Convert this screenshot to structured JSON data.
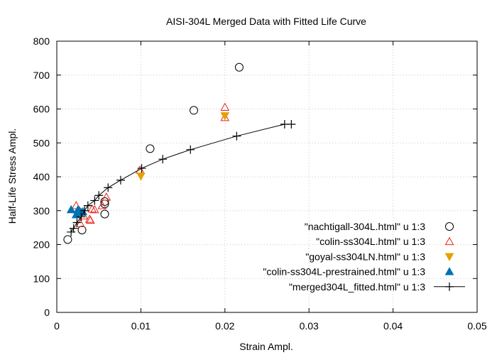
{
  "chart_data": {
    "type": "scatter",
    "title": "AISI-304L Merged Data with Fitted Life Curve",
    "xlabel": "Strain Ampl.",
    "ylabel": "Half-Life Stress Ampl.",
    "xlim": [
      0,
      0.05
    ],
    "ylim": [
      0,
      800
    ],
    "xticks": [
      0,
      0.01,
      0.02,
      0.03,
      0.04,
      0.05
    ],
    "xtick_labels": [
      "0",
      "0.01",
      "0.02",
      "0.03",
      "0.04",
      "0.05"
    ],
    "yticks": [
      0,
      100,
      200,
      300,
      400,
      500,
      600,
      700,
      800
    ],
    "ytick_labels": [
      "0",
      "100",
      "200",
      "300",
      "400",
      "500",
      "600",
      "700",
      "800"
    ],
    "grid": true,
    "legend_position": "bottom-right",
    "series": [
      {
        "name": "\"nachtigall-304L.html\" u 1:3",
        "marker": "circle-open",
        "color": "#000000",
        "points": [
          [
            0.0013,
            215
          ],
          [
            0.003,
            243
          ],
          [
            0.0057,
            290
          ],
          [
            0.0057,
            320
          ],
          [
            0.0057,
            327
          ],
          [
            0.0111,
            483
          ],
          [
            0.0163,
            596
          ],
          [
            0.0217,
            723
          ]
        ]
      },
      {
        "name": "\"colin-ss304L.html\"   u 1:3",
        "marker": "triangle-up-open",
        "color": "#e8251b",
        "points": [
          [
            0.0023,
            315
          ],
          [
            0.0028,
            262
          ],
          [
            0.0032,
            285
          ],
          [
            0.0039,
            275
          ],
          [
            0.004,
            272
          ],
          [
            0.0042,
            305
          ],
          [
            0.0045,
            303
          ],
          [
            0.0054,
            315
          ],
          [
            0.0059,
            340
          ],
          [
            0.0099,
            420
          ],
          [
            0.02,
            575
          ],
          [
            0.02,
            605
          ]
        ]
      },
      {
        "name": "\"goyal-ss304LN.html\"  u 1:3",
        "marker": "triangle-down-filled",
        "color": "#e5a000",
        "points": [
          [
            0.01,
            402
          ],
          [
            0.02,
            580
          ]
        ]
      },
      {
        "name": "\"colin-ss304L-prestrained.html\" u 1:3",
        "marker": "triangle-up-filled",
        "color": "#0072b2",
        "points": [
          [
            0.0017,
            303
          ],
          [
            0.0023,
            288
          ],
          [
            0.0025,
            302
          ],
          [
            0.0027,
            300
          ],
          [
            0.0029,
            295
          ],
          [
            0.0031,
            297
          ]
        ]
      },
      {
        "name": "\"merged304L_fitted.html\"        u 1:3",
        "marker": "plus",
        "color": "#000000",
        "line": true,
        "points": [
          [
            0.0017,
            237
          ],
          [
            0.002,
            248
          ],
          [
            0.0024,
            265
          ],
          [
            0.0029,
            282
          ],
          [
            0.0033,
            300
          ],
          [
            0.0037,
            315
          ],
          [
            0.0045,
            330
          ],
          [
            0.005,
            345
          ],
          [
            0.0061,
            368
          ],
          [
            0.0076,
            390
          ],
          [
            0.0101,
            425
          ],
          [
            0.0126,
            452
          ],
          [
            0.0159,
            480
          ],
          [
            0.0214,
            520
          ],
          [
            0.0271,
            555
          ],
          [
            0.0279,
            555
          ]
        ]
      }
    ]
  }
}
